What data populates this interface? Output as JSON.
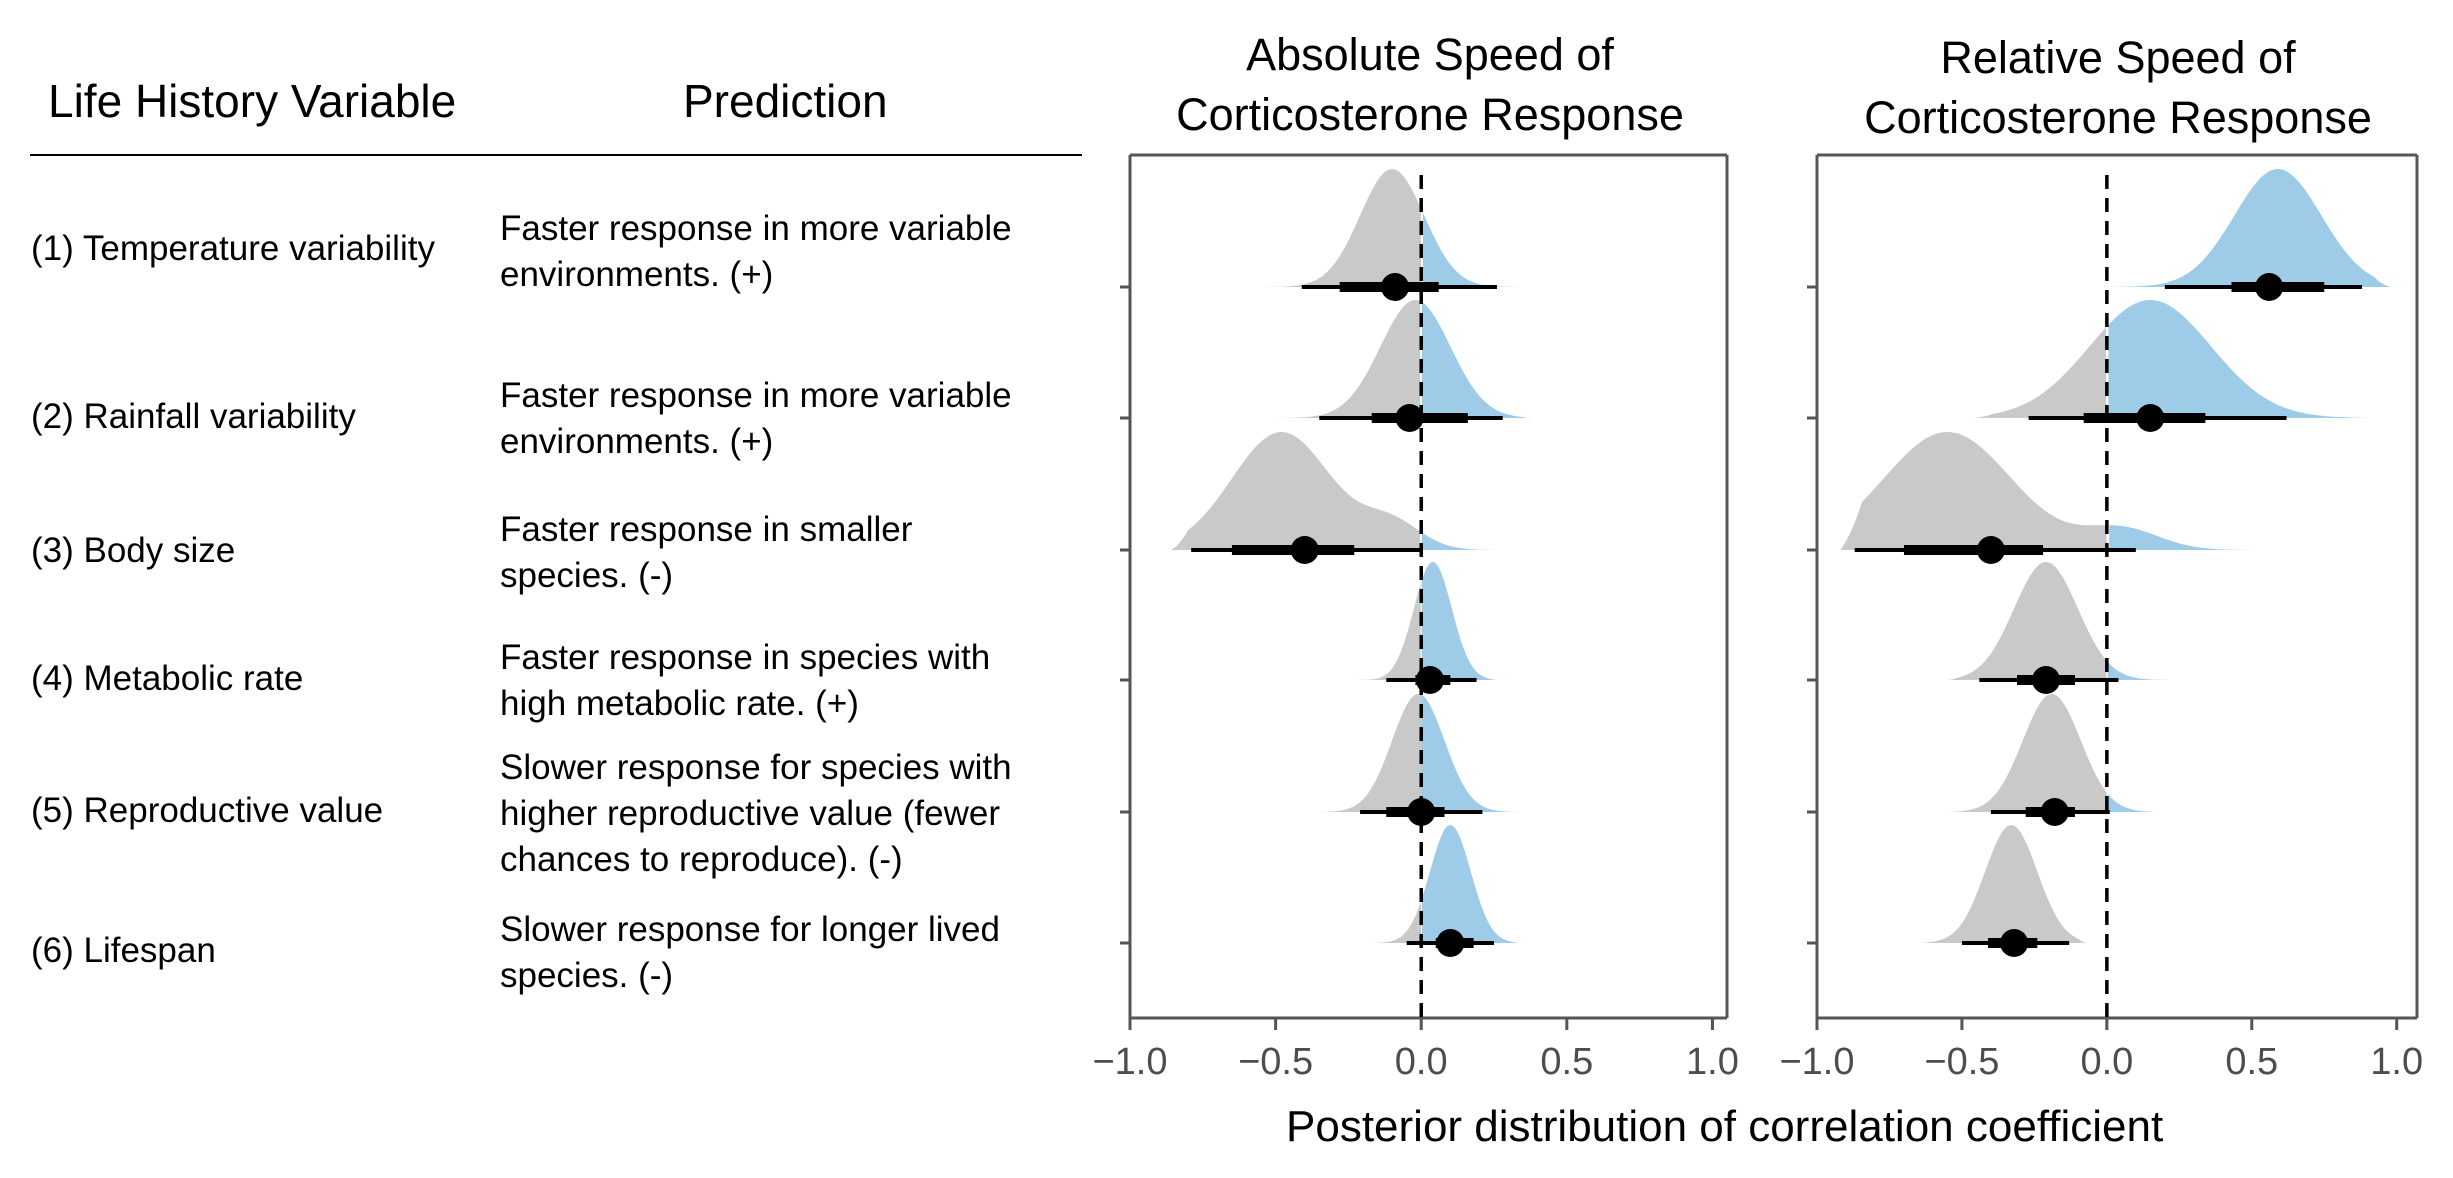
{
  "table": {
    "header_variable": "Life History Variable",
    "header_prediction": "Prediction",
    "rows": [
      {
        "variable": "(1) Temperature variability",
        "prediction": [
          "Faster response in more variable",
          "environments. (+)"
        ]
      },
      {
        "variable": "(2) Rainfall variability",
        "prediction": [
          "Faster response in more variable",
          "environments. (+)"
        ]
      },
      {
        "variable": "(3) Body size",
        "prediction": [
          "Faster response in smaller",
          "species. (-)"
        ]
      },
      {
        "variable": "(4) Metabolic rate",
        "prediction": [
          "Faster response in species with",
          "high metabolic rate. (+)"
        ]
      },
      {
        "variable": "(5) Reproductive value",
        "prediction": [
          "Slower response for species with",
          "higher reproductive value (fewer",
          "chances to reproduce). (-)"
        ]
      },
      {
        "variable": "(6) Lifespan",
        "prediction": [
          "Slower response for longer lived",
          "species. (-)"
        ]
      }
    ]
  },
  "colors": {
    "negative": "#c9c9c9",
    "positive": "#9ecbe8",
    "interval": "#000000",
    "axis": "#555555"
  },
  "chart_data": [
    {
      "type": "density",
      "title": [
        "Absolute Speed of",
        "Corticosterone Response"
      ],
      "xlabel": "",
      "xlim": [
        -1.0,
        1.05
      ],
      "xticks": [
        -1.0,
        -0.5,
        0.0,
        0.5,
        1.0
      ],
      "xtick_labels": [
        "−1.0",
        "−0.5",
        "0.0",
        "0.5",
        "1.0"
      ],
      "reference_line": 0.0,
      "series": [
        {
          "row": 1,
          "median": -0.09,
          "ci66": [
            -0.28,
            0.06
          ],
          "ci95": [
            -0.41,
            0.26
          ],
          "support": [
            -0.62,
            0.48
          ],
          "modes": [
            [
              -0.1,
              0.11,
              1.0
            ]
          ]
        },
        {
          "row": 2,
          "median": -0.04,
          "ci66": [
            -0.17,
            0.16
          ],
          "ci95": [
            -0.35,
            0.28
          ],
          "support": [
            -0.55,
            0.38
          ],
          "modes": [
            [
              -0.02,
              0.12,
              1.0
            ]
          ]
        },
        {
          "row": 3,
          "median": -0.4,
          "ci66": [
            -0.65,
            -0.23
          ],
          "ci95": [
            -0.79,
            0.0
          ],
          "support": [
            -0.86,
            0.33
          ],
          "modes": [
            [
              -0.48,
              0.17,
              1.0
            ],
            [
              -0.1,
              0.1,
              0.22
            ]
          ]
        },
        {
          "row": 4,
          "median": 0.03,
          "ci66": [
            -0.02,
            0.1
          ],
          "ci95": [
            -0.12,
            0.19
          ],
          "support": [
            -0.27,
            0.26
          ],
          "modes": [
            [
              0.04,
              0.065,
              1.0
            ]
          ]
        },
        {
          "row": 5,
          "median": 0.0,
          "ci66": [
            -0.12,
            0.08
          ],
          "ci95": [
            -0.21,
            0.21
          ],
          "support": [
            -0.36,
            0.36
          ],
          "modes": [
            [
              -0.01,
              0.09,
              1.0
            ]
          ]
        },
        {
          "row": 6,
          "median": 0.1,
          "ci66": [
            0.05,
            0.18
          ],
          "ci95": [
            -0.05,
            0.25
          ],
          "support": [
            -0.2,
            0.34
          ],
          "modes": [
            [
              0.1,
              0.07,
              1.0
            ]
          ]
        }
      ]
    },
    {
      "type": "density",
      "title": [
        "Relative Speed of",
        "Corticosterone Response"
      ],
      "xlabel": "",
      "xlim": [
        -1.0,
        1.07
      ],
      "xticks": [
        -1.0,
        -0.5,
        0.0,
        0.5,
        1.0
      ],
      "xtick_labels": [
        "−1.0",
        "−0.5",
        "0.0",
        "0.5",
        "1.0"
      ],
      "reference_line": 0.0,
      "series": [
        {
          "row": 1,
          "median": 0.56,
          "ci66": [
            0.43,
            0.75
          ],
          "ci95": [
            0.2,
            0.88
          ],
          "support": [
            -0.18,
            0.98
          ],
          "modes": [
            [
              0.59,
              0.15,
              1.0
            ]
          ]
        },
        {
          "row": 2,
          "median": 0.15,
          "ci66": [
            -0.08,
            0.34
          ],
          "ci95": [
            -0.27,
            0.62
          ],
          "support": [
            -0.46,
            0.92
          ],
          "modes": [
            [
              0.15,
              0.21,
              1.0
            ]
          ]
        },
        {
          "row": 3,
          "median": -0.4,
          "ci66": [
            -0.7,
            -0.22
          ],
          "ci95": [
            -0.87,
            0.1
          ],
          "support": [
            -0.92,
            0.58
          ],
          "modes": [
            [
              -0.55,
              0.22,
              1.0
            ],
            [
              0.05,
              0.13,
              0.18
            ]
          ]
        },
        {
          "row": 4,
          "median": -0.21,
          "ci66": [
            -0.31,
            -0.11
          ],
          "ci95": [
            -0.44,
            0.04
          ],
          "support": [
            -0.55,
            0.24
          ],
          "modes": [
            [
              -0.21,
              0.11,
              1.0
            ]
          ]
        },
        {
          "row": 5,
          "median": -0.18,
          "ci66": [
            -0.28,
            -0.11
          ],
          "ci95": [
            -0.4,
            0.01
          ],
          "support": [
            -0.56,
            0.18
          ],
          "modes": [
            [
              -0.19,
              0.1,
              1.0
            ]
          ]
        },
        {
          "row": 6,
          "median": -0.32,
          "ci66": [
            -0.41,
            -0.24
          ],
          "ci95": [
            -0.5,
            -0.13
          ],
          "support": [
            -0.64,
            -0.07
          ],
          "modes": [
            [
              -0.33,
              0.09,
              1.0
            ]
          ]
        }
      ]
    }
  ],
  "shared_xlabel": "Posterior distribution of correlation coefficient"
}
